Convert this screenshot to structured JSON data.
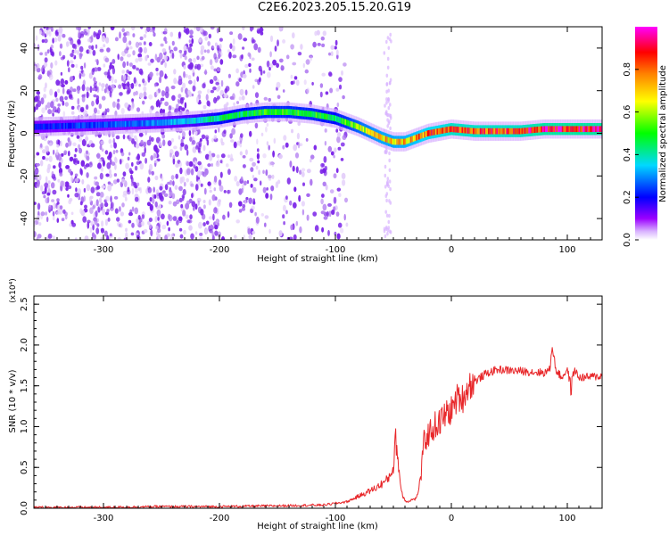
{
  "title": "C2E6.2023.205.15.20.G19",
  "colors": {
    "snr_line": "#e8272a",
    "spectro_dots": "#7a22e8",
    "colormap": [
      "#ffffff",
      "#9b00ff",
      "#0000ff",
      "#00d8ff",
      "#00ff00",
      "#ffff00",
      "#ff8000",
      "#ff0000",
      "#ff00ff"
    ]
  },
  "chart_data": [
    {
      "type": "heatmap",
      "xlabel": "Height of straight line (km)",
      "ylabel": "Frequency (Hz)",
      "xlim": [
        -360,
        130
      ],
      "ylim": [
        -50,
        50
      ],
      "xticks": [
        -300,
        -200,
        -100,
        0,
        100
      ],
      "xtick_labels": [
        "-300",
        "-200",
        "-100",
        "0",
        "100"
      ],
      "yticks": [
        -40,
        -20,
        0,
        20,
        40
      ],
      "ytick_labels": [
        "-40",
        "-20",
        "0",
        "20",
        "40"
      ],
      "colorbar": {
        "label": "Normalized spectral amplitude",
        "range": [
          0,
          1
        ],
        "ticks": [
          0.0,
          0.2,
          0.4,
          0.6,
          0.8
        ],
        "tick_labels": [
          "0.0",
          "0.2",
          "0.4",
          "0.6",
          "0.8"
        ]
      },
      "ridge": {
        "x": [
          -360,
          -300,
          -250,
          -220,
          -200,
          -180,
          -160,
          -140,
          -120,
          -100,
          -80,
          -60,
          -50,
          -40,
          -30,
          -20,
          -10,
          0,
          20,
          40,
          60,
          80,
          100,
          130
        ],
        "freq": [
          3,
          4,
          5,
          6,
          7,
          9,
          10,
          10,
          9,
          7,
          3,
          -2,
          -4,
          -4,
          -2,
          0,
          1,
          2,
          1,
          1,
          1,
          2,
          2,
          2
        ],
        "amplitude": [
          0.2,
          0.25,
          0.3,
          0.35,
          0.45,
          0.45,
          0.5,
          0.5,
          0.5,
          0.45,
          0.6,
          0.7,
          0.7,
          0.72,
          0.75,
          0.8,
          0.8,
          0.85,
          0.85,
          0.85,
          0.85,
          0.9,
          0.9,
          0.9
        ]
      },
      "scatter_extent_x": [
        -360,
        -100
      ]
    },
    {
      "type": "line",
      "xlabel": "Height of straight line (km)",
      "ylabel": "SNR (10 * v/v)",
      "y_multiplier": "(x10⁴)",
      "xlim": [
        -360,
        130
      ],
      "ylim": [
        0,
        2.6
      ],
      "xticks": [
        -300,
        -200,
        -100,
        0,
        100
      ],
      "xtick_labels": [
        "-300",
        "-200",
        "-100",
        "0",
        "100"
      ],
      "yticks": [
        0.0,
        0.5,
        1.0,
        1.5,
        2.0,
        2.5
      ],
      "ytick_labels": [
        "0.0",
        "0.5",
        "1.0",
        "1.5",
        "2.0",
        "2.5"
      ],
      "series": [
        {
          "x": [
            -360,
            -300,
            -250,
            -200,
            -150,
            -110,
            -90,
            -75,
            -65,
            -55,
            -50,
            -48,
            -46,
            -44,
            -42,
            -40,
            -38,
            -35,
            -30,
            -26,
            -24,
            -20,
            -15,
            -10,
            -5,
            0,
            5,
            10,
            15,
            20,
            25,
            30,
            40,
            60,
            80,
            85,
            87,
            90,
            95,
            100,
            103,
            106,
            110,
            130
          ],
          "y": [
            0.01,
            0.01,
            0.02,
            0.02,
            0.03,
            0.04,
            0.08,
            0.18,
            0.25,
            0.35,
            0.5,
            0.85,
            0.6,
            0.3,
            0.15,
            0.1,
            0.08,
            0.1,
            0.12,
            0.4,
            0.8,
            0.9,
            1.0,
            1.05,
            1.15,
            1.2,
            1.35,
            1.35,
            1.5,
            1.55,
            1.6,
            1.65,
            1.7,
            1.68,
            1.66,
            1.7,
            2.0,
            1.7,
            1.6,
            1.7,
            1.5,
            1.7,
            1.6,
            1.62
          ]
        }
      ]
    }
  ]
}
